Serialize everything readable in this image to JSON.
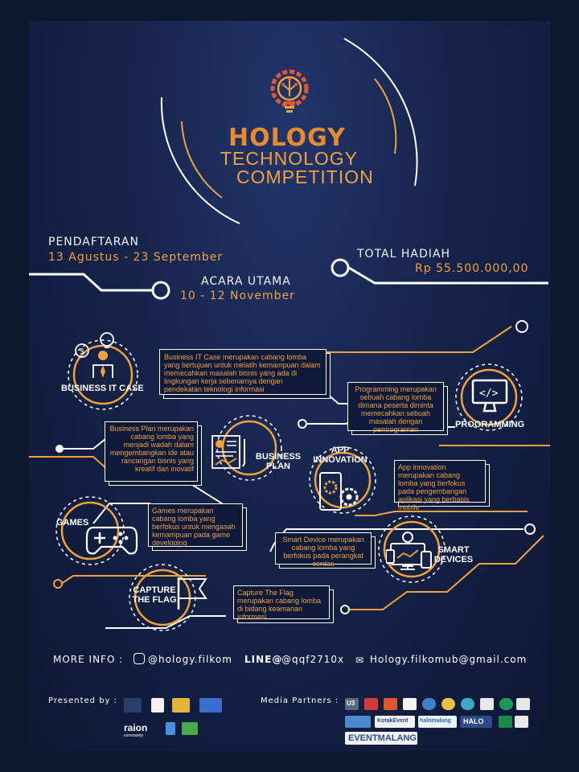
{
  "brand": {
    "name": "HOLOGY",
    "line1": "TECHNOLOGY",
    "line2": "COMPETITION"
  },
  "schedule": {
    "registration_label": "PENDAFTARAN",
    "registration_date": "13 Agustus - 23 September",
    "main_event_label": "ACARA UTAMA",
    "main_event_date": "10 - 12 November",
    "prize_label": "TOTAL HADIAH",
    "prize_value": "Rp 55.500.000,00"
  },
  "categories": [
    {
      "name": "BUSINESS IT CASE",
      "icon": "businessman-icon",
      "description": "Business IT Case merupakan cabang lomba yang bertujuan untuk melatih kemampuan dalam memecahkan masalah bisnis yang ada di lingkungan kerja sebenarnya dengan pendekatan teknologi informasi"
    },
    {
      "name": "PROGRAMMING",
      "icon": "code-monitor-icon",
      "description": "Programming merupakan sebuah cabang lomba dimana peserta diminta memecahkan sebuah masalah dengan pemrograman"
    },
    {
      "name": "BUSINESS PLAN",
      "icon": "report-icon",
      "description": "Business Plan merupakan cabang lomba yang menjadi wadah dalam mengembangkan ide atau rancangan bisnis yang kreatif dan inovatif"
    },
    {
      "name": "APP INNOVATION",
      "icon": "phone-gears-icon",
      "description": "App innovation merupakan cabang lomba yang berfokus pada pengembangan aplikasi yang berbasis mobile"
    },
    {
      "name": "GAMES",
      "icon": "gamepad-icon",
      "description": "Games merupakan cabang lomba yang berfokus untuk mengasah kemampuan pada game developing"
    },
    {
      "name": "SMART DEVICES",
      "icon": "smart-devices-icon",
      "description": "Smart Device merupakan cabang lomba yang berfokus pada perangkat cerdas"
    },
    {
      "name": "CAPTURE THE FLAG",
      "icon": "flag-icon",
      "description": "Capture The Flag merupakan cabang lomba di bidang keamanan informasi"
    }
  ],
  "contact": {
    "more_info_label": "MORE INFO :",
    "instagram": "@hology.filkom",
    "line_prefix": "LINE@",
    "line_id": "@qqf2710x",
    "email": "Hology.filkomub@gmail.com"
  },
  "footer": {
    "presented_label": "Presented by :",
    "media_label": "Media Partners :",
    "presenter_logos": [
      "raion",
      "community"
    ],
    "media_logos": [
      "U3",
      "KotakEvent",
      "halomalang",
      "HALO",
      "EVENTMALANG"
    ]
  },
  "colors": {
    "accent": "#f0a23c",
    "line": "#ffffff",
    "background": "#16244b"
  }
}
